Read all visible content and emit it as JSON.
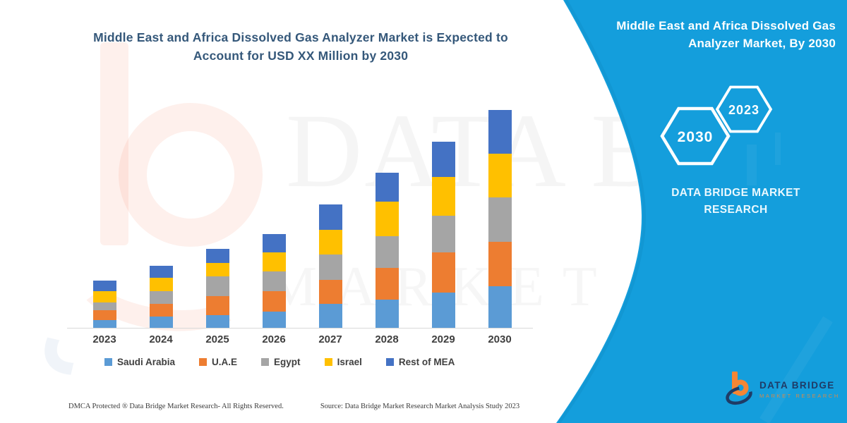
{
  "colors": {
    "banner": "#149EDC",
    "banner_edge": "#0C7FB5",
    "title_text": "#35587A",
    "axis_line": "#d9d9d9",
    "tick_text": "#3f3f3f",
    "logo_navy": "#1F3B66",
    "logo_orange": "#F58634"
  },
  "chart_title": {
    "line1": "Middle East and Africa Dissolved Gas Analyzer Market is Expected to",
    "line2": "Account for USD XX Million by 2030"
  },
  "chart_data": {
    "type": "bar",
    "stacked": true,
    "title": "Middle East and Africa Dissolved Gas Analyzer Market is Expected to Account for USD XX Million by 2030",
    "xlabel": "",
    "ylabel": "",
    "units": "USD Million (values undisclosed, shown as XX); segment values are relative estimates read from bar pixel heights",
    "gridlines": false,
    "legend_position": "bottom",
    "categories": [
      "2023",
      "2024",
      "2025",
      "2026",
      "2027",
      "2028",
      "2029",
      "2030"
    ],
    "series": [
      {
        "name": "Saudi Arabia",
        "color": "#5B9BD5",
        "values": [
          11,
          16,
          18,
          23,
          34,
          40,
          50,
          59
        ]
      },
      {
        "name": "U.A.E",
        "color": "#ED7D31",
        "values": [
          14,
          18,
          27,
          29,
          34,
          45,
          57,
          63
        ]
      },
      {
        "name": "Egypt",
        "color": "#A5A5A5",
        "values": [
          11,
          18,
          28,
          28,
          36,
          45,
          52,
          63
        ]
      },
      {
        "name": "Israel",
        "color": "#FFC000",
        "values": [
          16,
          19,
          19,
          27,
          35,
          49,
          55,
          62
        ]
      },
      {
        "name": "Rest of MEA",
        "color": "#4472C4",
        "values": [
          15,
          17,
          20,
          26,
          36,
          41,
          50,
          62
        ]
      }
    ],
    "totals": [
      67,
      88,
      112,
      133,
      175,
      220,
      264,
      309
    ]
  },
  "watermark": {
    "line1": "DATA BRIDGE",
    "line2": "MARKET RESEARCH"
  },
  "banner": {
    "title_line1": "Middle East and Africa Dissolved Gas",
    "title_line2": "Analyzer Market, By 2030",
    "hexagons": [
      {
        "label": "2030"
      },
      {
        "label": "2023"
      }
    ],
    "brand_line1": "DATA BRIDGE MARKET",
    "brand_line2": "RESEARCH"
  },
  "logo": {
    "name": "DATA BRIDGE",
    "tagline": "MARKET RESEARCH"
  },
  "footer": {
    "dmca": "DMCA Protected ® Data Bridge Market Research-  All Rights Reserved.",
    "source": "Source: Data Bridge Market Research  Market Analysis Study 2023"
  }
}
